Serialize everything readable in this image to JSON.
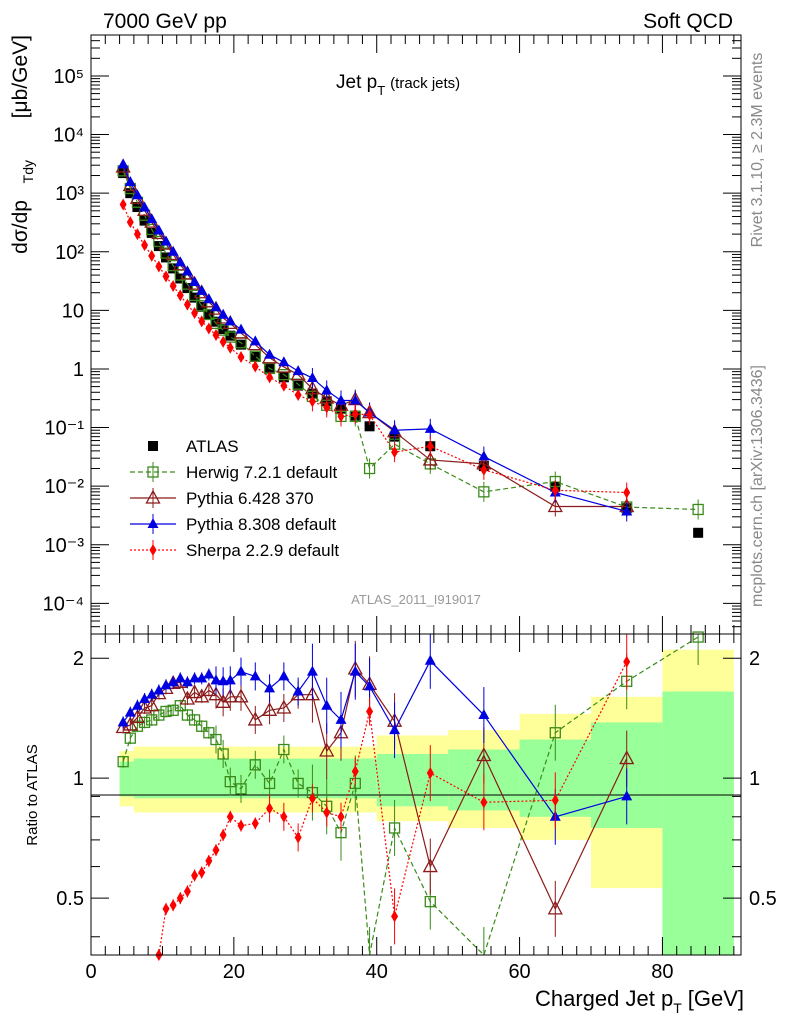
{
  "header": {
    "left": "7000 GeV pp",
    "right": "Soft QCD"
  },
  "side_text": {
    "rivet": "Rivet 3.1.10, ≥ 2.3M events",
    "mcplots": "mcplots.cern.ch [arXiv:1306.3436]"
  },
  "watermark": "ATLAS_2011_I919017",
  "colors": {
    "atlas": "#000000",
    "herwig": "#3a8a1a",
    "pythia6": "#8b1a1a",
    "pythia8": "#0000e0",
    "sherpa": "#ff0000",
    "band_yellow": "#ffff99",
    "band_green": "#99ff99"
  },
  "chart_data": [
    {
      "type": "scatter",
      "title": "Jet p_T (track jets)",
      "title_main": "Jet p",
      "title_sub": "T",
      "title_extra": "(track jets)",
      "ylabel": "dσ/dp_Tdy [μb/GeV]",
      "ylabel_parts": {
        "a": "dσ/dp",
        "b": "Tdy",
        "c": "[μb/GeV]"
      },
      "yscale": "log",
      "xlim": [
        0,
        91
      ],
      "ylim": [
        3e-05,
        500000
      ],
      "legend_position": "lower-left",
      "y_tick_labels": [
        "10⁵",
        "10⁴",
        "10³",
        "10²",
        "10",
        "1",
        "10⁻¹",
        "10⁻²",
        "10⁻³",
        "10⁻⁴"
      ],
      "x_points": [
        4.5,
        5.5,
        6.5,
        7.5,
        8.5,
        9.5,
        10.5,
        11.5,
        12.5,
        13.5,
        14.5,
        15.5,
        16.5,
        17.5,
        18.5,
        19.5,
        21,
        23,
        25,
        27,
        29,
        31,
        33,
        35,
        37,
        39,
        42.5,
        47.5,
        55,
        65,
        75,
        85
      ],
      "series": [
        {
          "name": "ATLAS",
          "key": "atlas",
          "marker": "square-filled",
          "values": [
            2200,
            1000,
            580,
            340,
            210,
            125,
            80,
            52,
            35,
            24,
            16.5,
            11.5,
            8.5,
            6.4,
            4.8,
            3.7,
            2.6,
            1.6,
            1.05,
            0.72,
            0.52,
            0.38,
            0.28,
            0.21,
            0.16,
            0.105,
            0.07,
            0.048,
            0.022,
            0.0098,
            0.0042,
            0.0016
          ]
        },
        {
          "name": "Herwig 7.2.1 default",
          "key": "herwig",
          "marker": "square-open",
          "values": [
            2400,
            1200,
            700,
            420,
            240,
            150,
            95,
            58,
            40,
            28,
            18,
            12,
            8.5,
            6,
            4.6,
            3.5,
            2.8,
            1.65,
            1.02,
            0.8,
            0.55,
            0.34,
            0.24,
            0.155,
            0.155,
            0.02,
            0.052,
            0.024,
            0.008,
            0.012,
            0.0044,
            0.004
          ]
        },
        {
          "name": "Pythia 6.428 370",
          "key": "pythia6",
          "marker": "triangle-open",
          "values": [
            2800,
            1350,
            820,
            510,
            320,
            205,
            135,
            90,
            60,
            42,
            28,
            20,
            14,
            10.5,
            7.4,
            6,
            4.1,
            2.6,
            1.55,
            1.08,
            0.8,
            0.46,
            0.32,
            0.24,
            0.3,
            0.18,
            0.085,
            0.028,
            0.024,
            0.0045,
            0.0045
          ]
        },
        {
          "name": "Pythia 8.308 default",
          "key": "pythia8",
          "marker": "triangle-filled",
          "values": [
            3100,
            1550,
            920,
            570,
            360,
            230,
            150,
            100,
            66,
            46,
            30.5,
            21.5,
            15.5,
            11.3,
            8.4,
            6.5,
            4.7,
            2.95,
            1.75,
            1.3,
            0.92,
            0.7,
            0.43,
            0.29,
            0.29,
            0.18,
            0.09,
            0.095,
            0.032,
            0.0078,
            0.0037
          ]
        },
        {
          "name": "Sherpa 2.2.9 default",
          "key": "sherpa",
          "marker": "diamond-filled",
          "values": [
            640,
            320,
            200,
            130,
            85,
            56,
            38,
            26,
            18,
            12.5,
            9,
            6.5,
            4.9,
            3.8,
            2.9,
            2.3,
            1.6,
            1.1,
            0.72,
            0.52,
            0.36,
            0.28,
            0.22,
            0.155,
            0.17,
            0.165,
            0.038,
            0.048,
            0.019,
            0.0085,
            0.0078
          ]
        }
      ]
    },
    {
      "type": "scatter",
      "ylabel": "Ratio to ATLAS",
      "xlabel": "Charged Jet p_T [GeV]",
      "xlabel_parts": {
        "a": "Charged Jet p",
        "b": "T",
        "c": "[GeV]"
      },
      "xlim": [
        0,
        91
      ],
      "ylim": [
        0.36,
        2.3
      ],
      "y_tick_labels": [
        "0.5",
        "1",
        "2"
      ],
      "x_tick_labels": [
        "0",
        "20",
        "40",
        "60",
        "80"
      ],
      "bands": [
        {
          "x": [
            4,
            6
          ],
          "yellow": [
            0.85,
            1.17
          ],
          "green": [
            0.9,
            1.1
          ]
        },
        {
          "x": [
            6,
            40
          ],
          "yellow": [
            0.82,
            1.2
          ],
          "green": [
            0.89,
            1.12
          ]
        },
        {
          "x": [
            40,
            50
          ],
          "yellow": [
            0.78,
            1.28
          ],
          "green": [
            0.85,
            1.15
          ]
        },
        {
          "x": [
            50,
            60
          ],
          "yellow": [
            0.75,
            1.32
          ],
          "green": [
            0.83,
            1.18
          ]
        },
        {
          "x": [
            60,
            70
          ],
          "yellow": [
            0.7,
            1.45
          ],
          "green": [
            0.8,
            1.25
          ]
        },
        {
          "x": [
            70,
            80
          ],
          "yellow": [
            0.53,
            1.6
          ],
          "green": [
            0.75,
            1.38
          ]
        },
        {
          "x": [
            80,
            90
          ],
          "yellow": [
            0.36,
            2.1
          ],
          "green": [
            0.36,
            1.65
          ]
        }
      ],
      "series": [
        {
          "key": "herwig",
          "x": [
            4.5,
            5.5,
            6.5,
            7.5,
            8.5,
            9.5,
            10.5,
            11.5,
            12.5,
            13.5,
            14.5,
            15.5,
            16.5,
            17.5,
            18.5,
            19.5,
            21,
            23,
            25,
            27,
            29,
            31,
            33,
            35,
            37,
            39,
            42.5,
            47.5,
            55,
            65,
            75,
            85
          ],
          "values": [
            1.1,
            1.26,
            1.35,
            1.38,
            1.4,
            1.44,
            1.47,
            1.48,
            1.52,
            1.44,
            1.4,
            1.35,
            1.3,
            1.25,
            1.15,
            0.98,
            0.94,
            1.08,
            0.97,
            1.18,
            0.97,
            0.92,
            0.85,
            0.73,
            0.97,
            0.31,
            0.75,
            0.49,
            0.3,
            1.3,
            1.75,
            2.26
          ]
        },
        {
          "key": "pythia6",
          "x": [
            4.5,
            5.5,
            6.5,
            7.5,
            8.5,
            9.5,
            10.5,
            11.5,
            12.5,
            13.5,
            14.5,
            15.5,
            16.5,
            17.5,
            18.5,
            19.5,
            21,
            23,
            25,
            27,
            29,
            31,
            33,
            35,
            37,
            39,
            42.5,
            47.5,
            55,
            65,
            75
          ],
          "values": [
            1.34,
            1.36,
            1.42,
            1.5,
            1.52,
            1.63,
            1.68,
            1.73,
            1.74,
            1.58,
            1.64,
            1.6,
            1.66,
            1.62,
            1.55,
            1.6,
            1.6,
            1.4,
            1.48,
            1.5,
            1.62,
            1.62,
            1.17,
            1.3,
            1.88,
            1.72,
            1.39,
            0.6,
            1.14,
            0.47,
            1.12
          ]
        },
        {
          "key": "pythia8",
          "x": [
            4.5,
            5.5,
            6.5,
            7.5,
            8.5,
            9.5,
            10.5,
            11.5,
            12.5,
            13.5,
            14.5,
            15.5,
            16.5,
            17.5,
            18.5,
            19.5,
            21,
            23,
            25,
            27,
            29,
            31,
            33,
            35,
            37,
            39,
            42.5,
            47.5,
            55,
            65,
            75
          ],
          "values": [
            1.38,
            1.46,
            1.52,
            1.58,
            1.62,
            1.66,
            1.71,
            1.74,
            1.78,
            1.74,
            1.78,
            1.78,
            1.82,
            1.76,
            1.75,
            1.76,
            1.85,
            1.8,
            1.68,
            1.8,
            1.65,
            1.85,
            1.52,
            1.4,
            1.85,
            1.7,
            1.32,
            1.97,
            1.44,
            0.8,
            0.9
          ]
        },
        {
          "key": "sherpa",
          "x": [
            9.5,
            10.5,
            11.5,
            12.5,
            13.5,
            14.5,
            15.5,
            16.5,
            17.5,
            18.5,
            19.5,
            21,
            23,
            25,
            27,
            29,
            31,
            33,
            35,
            37,
            39,
            42.5,
            47.5,
            55,
            65,
            75
          ],
          "values": [
            0.36,
            0.47,
            0.48,
            0.5,
            0.52,
            0.57,
            0.58,
            0.62,
            0.66,
            0.72,
            0.8,
            0.76,
            0.77,
            0.84,
            0.8,
            0.71,
            0.89,
            0.82,
            0.8,
            1.04,
            1.47,
            0.45,
            1.03,
            0.87,
            0.88,
            1.96
          ]
        }
      ]
    }
  ]
}
